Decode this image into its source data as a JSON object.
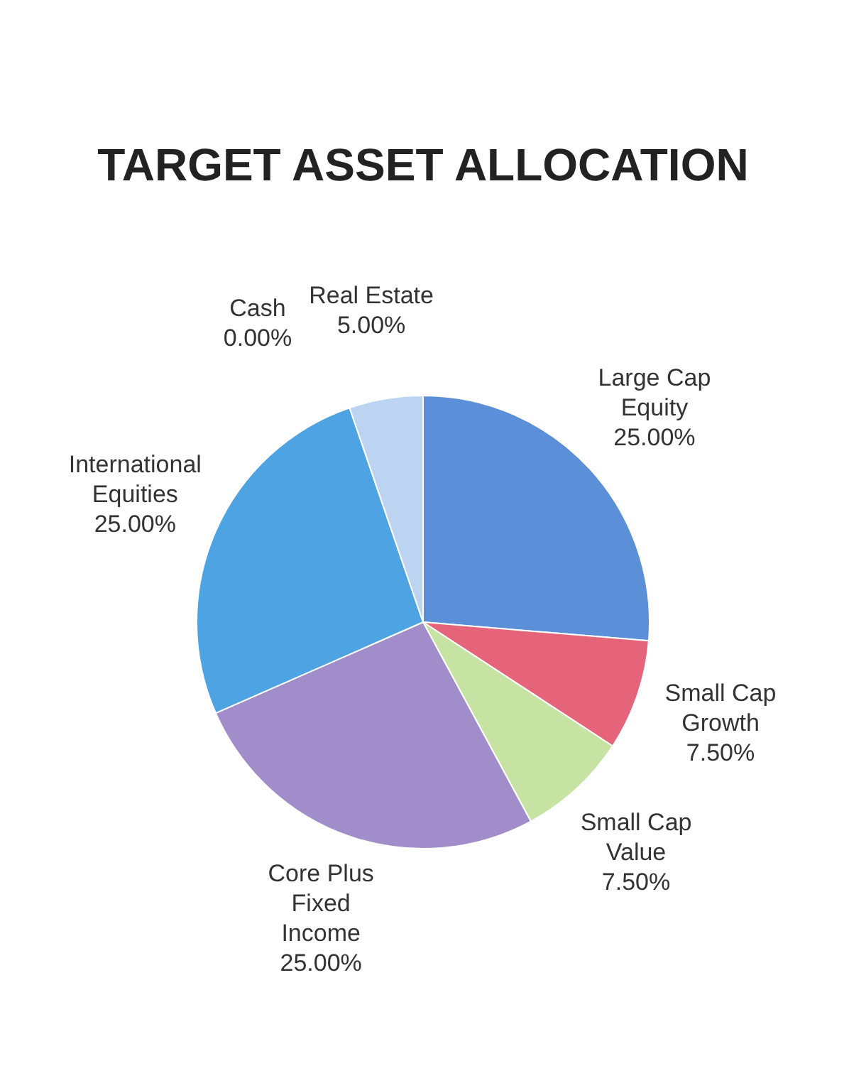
{
  "chart_data": {
    "type": "pie",
    "title": "TARGET ASSET ALLOCATION",
    "categories": [
      "Large Cap Equity",
      "Small Cap Growth",
      "Small Cap Value",
      "Core Plus Fixed Income",
      "International Equities",
      "Cash",
      "Real Estate"
    ],
    "values": [
      25,
      7.5,
      7.5,
      25,
      25,
      0,
      5
    ],
    "value_labels": [
      "25.00%",
      "7.50%",
      "7.50%",
      "25.00%",
      "25.00%",
      "0.00%",
      "5.00%"
    ],
    "colors": [
      "#5b8fd8",
      "#e5647a",
      "#c6e3a4",
      "#a08dc9",
      "#4ea3e3",
      "#2f6fb8",
      "#bcd3f2"
    ],
    "legend": false
  }
}
